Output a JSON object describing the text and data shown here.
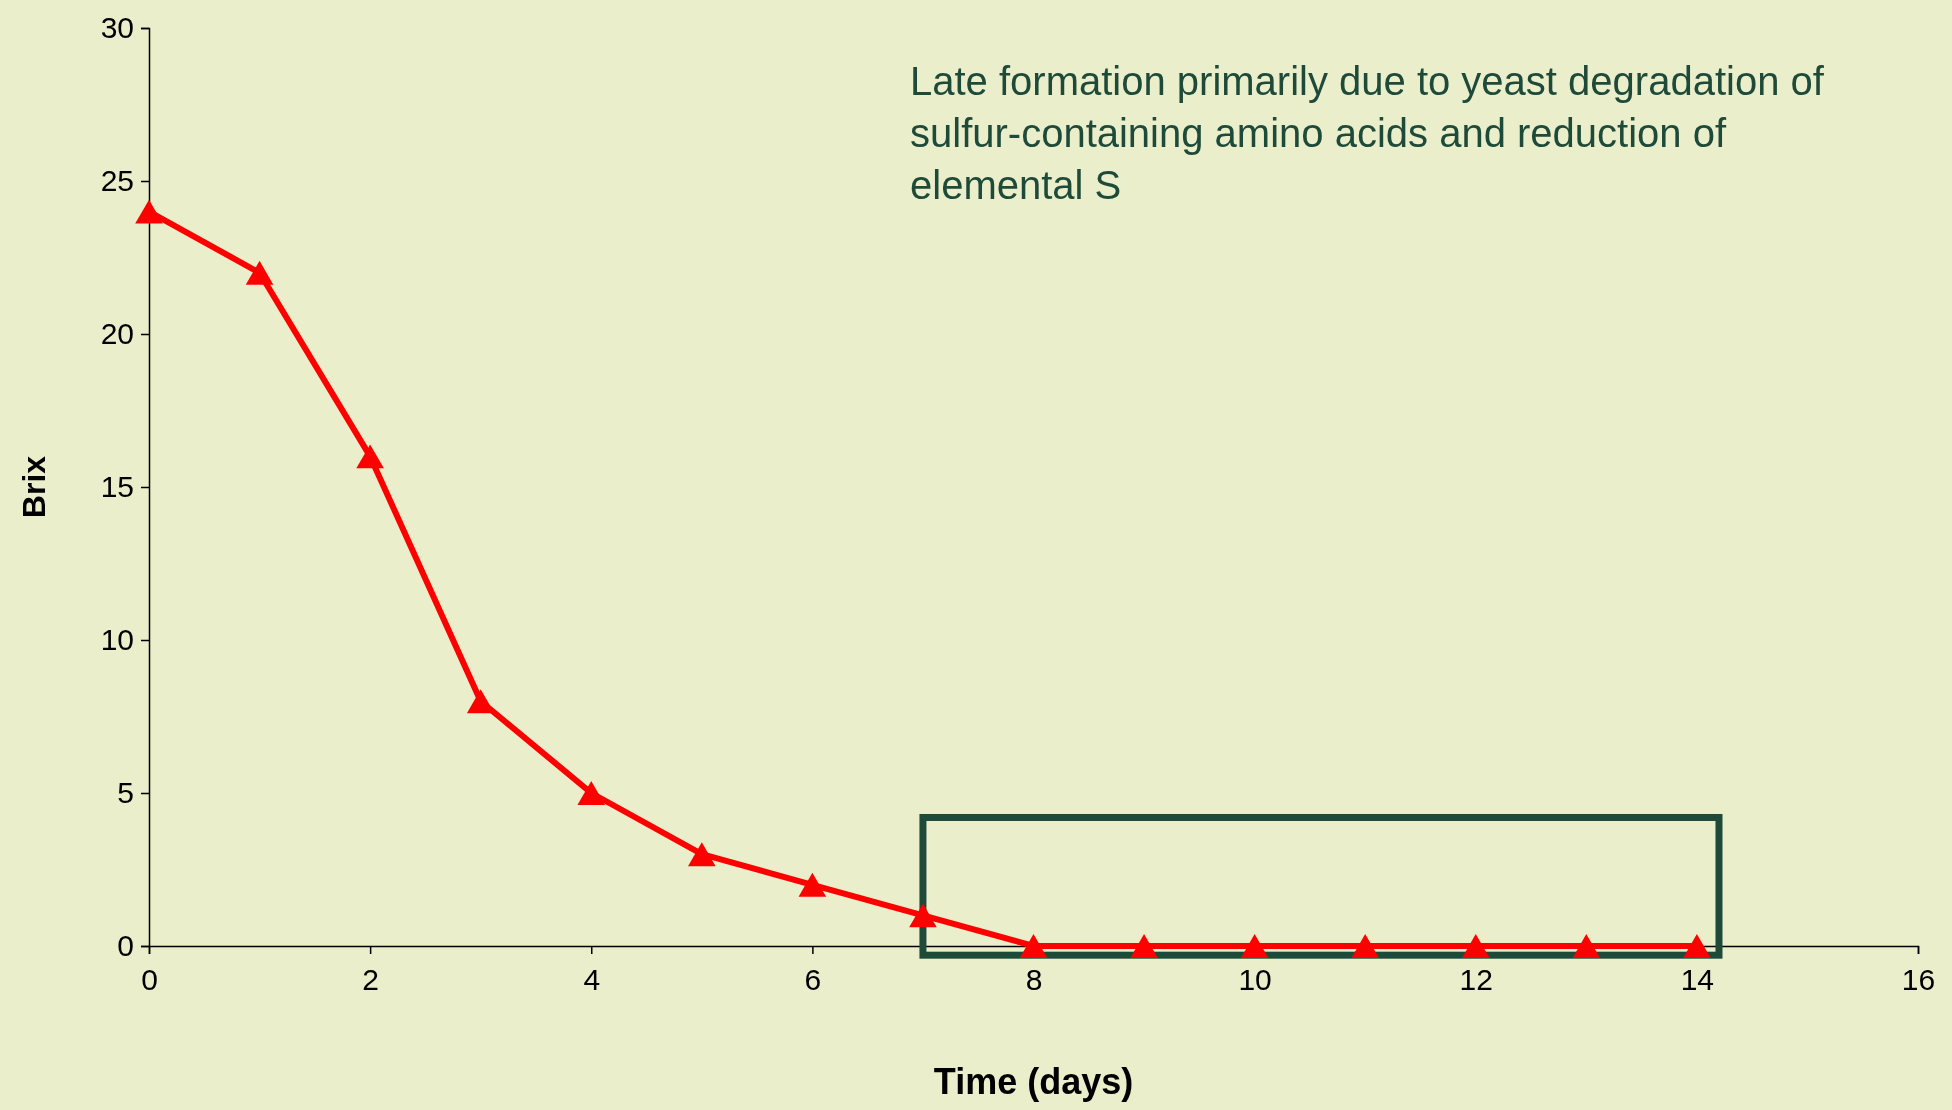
{
  "chart_data": {
    "type": "line",
    "xlabel": "Time (days)",
    "ylabel": "Brix",
    "annotations": [
      "Late formation primarily due to yeast degradation of sulfur-containing amino acids and reduction of elemental S"
    ],
    "x": [
      0,
      1,
      2,
      3,
      4,
      5,
      6,
      7,
      8,
      9,
      10,
      11,
      12,
      13,
      14
    ],
    "series": [
      {
        "color": "#ff0000",
        "values": [
          24,
          22,
          16,
          8,
          5,
          3,
          2,
          1,
          0,
          0,
          0,
          0,
          0,
          0,
          0
        ]
      }
    ],
    "xlim": [
      0,
      16
    ],
    "xticks": [
      0,
      2,
      4,
      6,
      8,
      10,
      12,
      14,
      16
    ],
    "ylim": [
      0,
      30
    ],
    "yticks": [
      0,
      5,
      10,
      15,
      20,
      25,
      30
    ],
    "marker": "triangle",
    "line_style": "solid"
  }
}
